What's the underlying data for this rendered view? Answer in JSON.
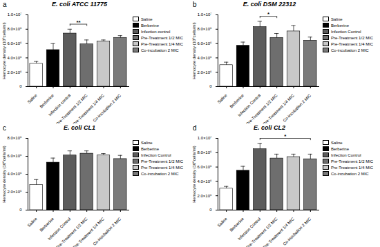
{
  "chart_data": [
    {
      "type": "bar",
      "panel": "a",
      "title": "E. coli ATCC 11775",
      "y_label": "Hemocyte density (10⁶cells/ml)",
      "categories": [
        "Saline",
        "Berberine",
        "Infection control",
        "Pre-Treatment 1/2 MIC",
        "Pre-Treatment 1/4 MIC",
        "Co-incubation 2 MIC"
      ],
      "values": [
        3200000,
        5100000,
        7400000,
        5900000,
        6300000,
        6800000
      ],
      "errors": [
        300000,
        900000,
        600000,
        600000,
        200000,
        300000
      ],
      "colors": [
        "#ffffff",
        "#000000",
        "#5c5c5c",
        "#6e6e6e",
        "#c8c8c8",
        "#7a7a7a"
      ],
      "ylim": [
        0,
        10000000
      ],
      "yticks": [
        0,
        {
          "value": 2000000,
          "label": "2.0×10⁶"
        },
        {
          "value": 4000000,
          "label": "4.0×10⁶"
        },
        {
          "value": 6000000,
          "label": "6.0×10⁶"
        },
        {
          "value": 8000000,
          "label": "8.0×10⁶"
        },
        {
          "value": 10000000,
          "label": "1.0×10⁷"
        }
      ],
      "annotations": [
        {
          "from": "Infection control",
          "to": "Pre-Treatment 1/2 MIC",
          "label": "**"
        }
      ],
      "legend": "right"
    },
    {
      "type": "bar",
      "panel": "b",
      "title": "E. coli DSM 22312",
      "y_label": "Hemocyte density (10⁶cells/ml)",
      "categories": [
        "Saline",
        "Berberine",
        "Infection Control",
        "Pre-Treatment 1/2 MIC",
        "Pre-Treatment 1/4 MIC",
        "Co-incubation 2 MIC"
      ],
      "values": [
        3000000,
        5700000,
        8300000,
        6800000,
        7700000,
        6400000
      ],
      "errors": [
        400000,
        500000,
        800000,
        600000,
        800000,
        500000
      ],
      "colors": [
        "#ffffff",
        "#000000",
        "#5c5c5c",
        "#6e6e6e",
        "#c8c8c8",
        "#7a7a7a"
      ],
      "ylim": [
        0,
        10000000
      ],
      "yticks": [
        0,
        {
          "value": 2000000,
          "label": "2.0×10⁶"
        },
        {
          "value": 4000000,
          "label": "4.0×10⁶"
        },
        {
          "value": 6000000,
          "label": "6.0×10⁶"
        },
        {
          "value": 8000000,
          "label": "8.0×10⁶"
        },
        {
          "value": 10000000,
          "label": "1.0×10⁷"
        }
      ],
      "annotations": [
        {
          "from": "Infection Control",
          "to": "Pre-Treatment 1/2 MIC",
          "label": "*"
        }
      ],
      "legend": "right"
    },
    {
      "type": "bar",
      "panel": "c",
      "title": "E. coli CL1",
      "y_label": "Hemocyte density (10⁶cells/ml)",
      "categories": [
        "Saline",
        "Berberine",
        "Infection Control",
        "Pre-Treatment 1/2 MIC",
        "Pre-Treatment 1/4 MIC",
        "Co-incubation 2 MIC"
      ],
      "values": [
        2800000,
        5300000,
        6100000,
        6300000,
        6100000,
        5700000
      ],
      "errors": [
        600000,
        500000,
        500000,
        300000,
        200000,
        400000
      ],
      "colors": [
        "#ffffff",
        "#000000",
        "#5c5c5c",
        "#6e6e6e",
        "#c8c8c8",
        "#7a7a7a"
      ],
      "ylim": [
        0,
        8000000
      ],
      "yticks": [
        0,
        {
          "value": 2000000,
          "label": "2.0×10⁶"
        },
        {
          "value": 4000000,
          "label": "4.0×10⁶"
        },
        {
          "value": 6000000,
          "label": "6.0×10⁶"
        },
        {
          "value": 8000000,
          "label": "8.0×10⁶"
        }
      ],
      "annotations": [],
      "legend": "right"
    },
    {
      "type": "bar",
      "panel": "d",
      "title": "E. coli CL2",
      "y_label": "Hemocyte density (10⁶cells/ml)",
      "categories": [
        "Saline",
        "Berberine",
        "Infection Control",
        "Pre-Treatment 1/2 MIC",
        "Pre-Treatment 1/4 MIC",
        "Co-incubation 2 MIC"
      ],
      "values": [
        3000000,
        5500000,
        8500000,
        7200000,
        7400000,
        7100000
      ],
      "errors": [
        300000,
        600000,
        800000,
        600000,
        400000,
        700000
      ],
      "colors": [
        "#ffffff",
        "#000000",
        "#5c5c5c",
        "#6e6e6e",
        "#c8c8c8",
        "#7a7a7a"
      ],
      "ylim": [
        0,
        10000000
      ],
      "yticks": [
        0,
        {
          "value": 2000000,
          "label": "2.0×10⁶"
        },
        {
          "value": 4000000,
          "label": "4.0×10⁶"
        },
        {
          "value": 6000000,
          "label": "6.0×10⁶"
        },
        {
          "value": 8000000,
          "label": "8.0×10⁶"
        },
        {
          "value": 10000000,
          "label": "1.0×10⁷"
        }
      ],
      "annotations": [
        {
          "from": "Infection Control",
          "to": "Co-incubation 2 MIC",
          "label": "*"
        }
      ],
      "legend": "right"
    }
  ]
}
